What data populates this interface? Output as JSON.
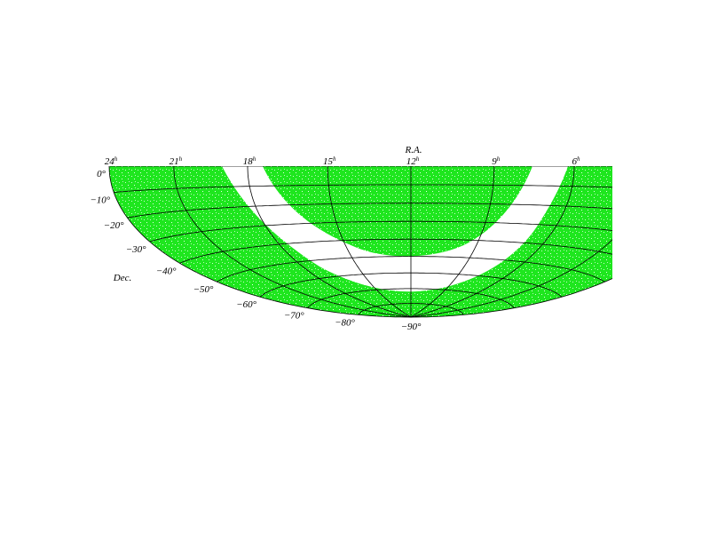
{
  "map": {
    "ra_title": "R.A.",
    "ra_labels": [
      "24",
      "21",
      "18",
      "15",
      "12",
      "9",
      "6"
    ],
    "ra_unit": "h",
    "dec_title": "Dec.",
    "dec_labels": [
      "0°",
      "−10°",
      "−20°",
      "−30°",
      "−40°",
      "−50°",
      "−60°",
      "−70°",
      "−80°",
      "−90°"
    ]
  }
}
